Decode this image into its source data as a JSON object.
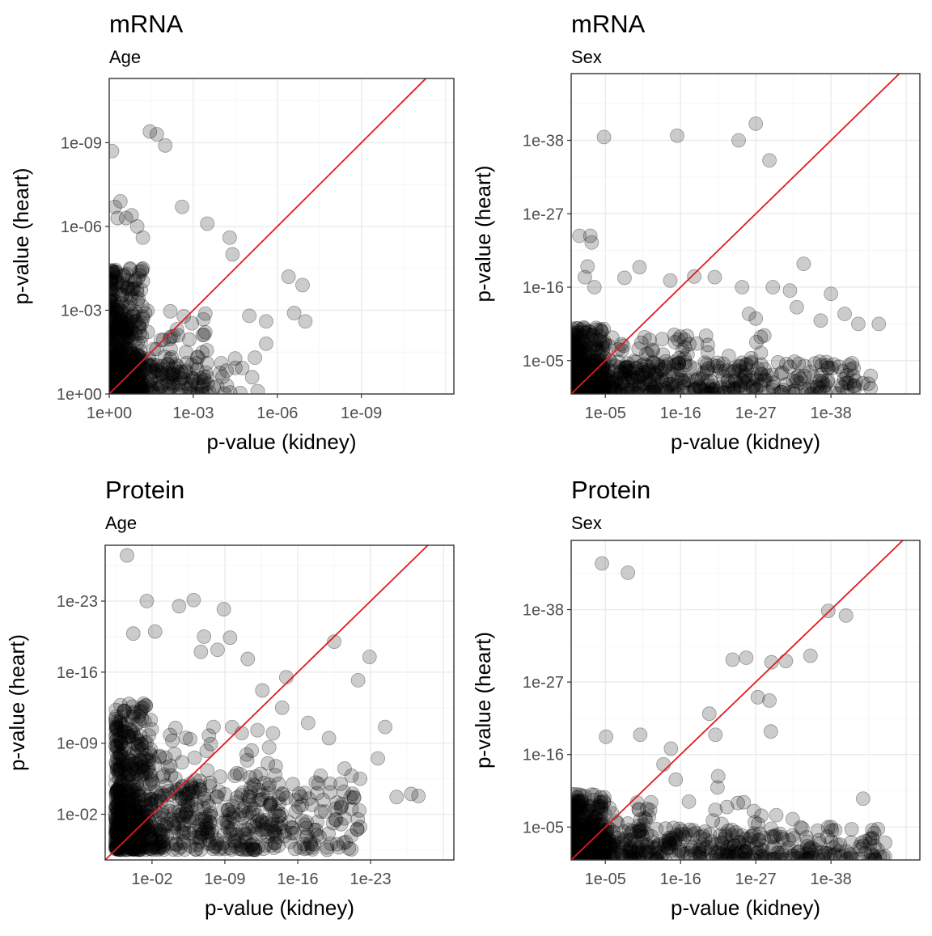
{
  "chart_data": [
    {
      "type": "scatter",
      "title": "mRNA",
      "subtitle": "Age",
      "xlabel": "p-value (kidney)",
      "ylabel": "p-value (heart)",
      "scale": "-log10",
      "xlim": [
        0,
        12.3
      ],
      "ylim": [
        0,
        11.3
      ],
      "ticks": [
        {
          "v": 0,
          "label": "1e+00"
        },
        {
          "v": 3,
          "label": "1e-03"
        },
        {
          "v": 6,
          "label": "1e-06"
        },
        {
          "v": 9,
          "label": "1e-09"
        }
      ],
      "reference_line": "y = x",
      "outliers": [
        [
          1.45,
          9.4
        ],
        [
          1.7,
          9.3
        ],
        [
          2.0,
          8.9
        ],
        [
          0.1,
          8.7
        ],
        [
          0.2,
          6.7
        ],
        [
          0.4,
          6.9
        ],
        [
          0.3,
          6.3
        ],
        [
          0.6,
          6.3
        ],
        [
          0.8,
          6.4
        ],
        [
          1.0,
          6.0
        ],
        [
          1.2,
          5.6
        ],
        [
          2.6,
          6.7
        ],
        [
          3.5,
          6.1
        ],
        [
          4.3,
          5.6
        ],
        [
          4.4,
          5.0
        ],
        [
          6.4,
          4.2
        ],
        [
          6.9,
          3.9
        ],
        [
          6.6,
          2.9
        ],
        [
          7.0,
          2.6
        ],
        [
          5.0,
          2.8
        ],
        [
          5.6,
          2.6
        ],
        [
          5.6,
          1.8
        ],
        [
          5.2,
          1.3
        ],
        [
          5.1,
          0.6
        ],
        [
          5.3,
          0.1
        ],
        [
          4.2,
          0.3
        ],
        [
          4.0,
          1.1
        ]
      ],
      "dense_region": [
        {
          "x": [
            0,
            1.2
          ],
          "y": [
            0,
            4.5
          ],
          "n": 360
        },
        {
          "x": [
            0,
            3.5
          ],
          "y": [
            0,
            3.0
          ],
          "n": 220
        },
        {
          "x": [
            0,
            4.8
          ],
          "y": [
            0,
            1.5
          ],
          "n": 100
        }
      ]
    },
    {
      "type": "scatter",
      "title": "mRNA",
      "subtitle": "Sex",
      "xlabel": "p-value (kidney)",
      "ylabel": "p-value (heart)",
      "scale": "-log10",
      "xlim": [
        0,
        51
      ],
      "ylim": [
        0,
        48
      ],
      "ticks": [
        {
          "v": 5,
          "label": "1e-05"
        },
        {
          "v": 16,
          "label": "1e-16"
        },
        {
          "v": 27,
          "label": "1e-27"
        },
        {
          "v": 38,
          "label": "1e-38"
        }
      ],
      "reference_line": "y = x",
      "outliers": [
        [
          4.8,
          38.5
        ],
        [
          15.5,
          38.7
        ],
        [
          24.5,
          38.0
        ],
        [
          27.0,
          40.5
        ],
        [
          29.0,
          35.0
        ],
        [
          1.2,
          23.7
        ],
        [
          2.8,
          23.7
        ],
        [
          3.0,
          22.7
        ],
        [
          2.4,
          19.1
        ],
        [
          2.0,
          17.5
        ],
        [
          3.4,
          16.0
        ],
        [
          7.8,
          17.4
        ],
        [
          10.0,
          19.0
        ],
        [
          14.5,
          17.0
        ],
        [
          18.0,
          17.6
        ],
        [
          21.0,
          17.5
        ],
        [
          25.0,
          16.0
        ],
        [
          29.5,
          16.0
        ],
        [
          32.0,
          15.5
        ],
        [
          34.0,
          19.5
        ],
        [
          38.0,
          15.0
        ],
        [
          40.0,
          12.0
        ],
        [
          42.0,
          10.5
        ],
        [
          45.0,
          10.5
        ],
        [
          36.5,
          11.0
        ],
        [
          33.0,
          13.0
        ],
        [
          26.0,
          12.0
        ],
        [
          27.0,
          11.3
        ]
      ],
      "dense_region": [
        {
          "x": [
            0,
            5
          ],
          "y": [
            0,
            10
          ],
          "n": 260
        },
        {
          "x": [
            0,
            44
          ],
          "y": [
            0,
            5
          ],
          "n": 420
        },
        {
          "x": [
            0,
            30
          ],
          "y": [
            2,
            9
          ],
          "n": 120
        }
      ]
    },
    {
      "type": "scatter",
      "title": "Protein",
      "subtitle": "Age",
      "xlabel": "p-value (kidney)",
      "ylabel": "p-value (heart)",
      "scale": "-log10",
      "xlim": [
        -2.5,
        31
      ],
      "ylim": [
        -2.5,
        28.5
      ],
      "ticks": [
        {
          "v": 2,
          "label": "1e-02"
        },
        {
          "v": 9,
          "label": "1e-09"
        },
        {
          "v": 16,
          "label": "1e-16"
        },
        {
          "v": 23,
          "label": "1e-23"
        }
      ],
      "reference_line": "y = x",
      "outliers": [
        [
          -0.4,
          27.5
        ],
        [
          1.5,
          23.0
        ],
        [
          4.6,
          22.5
        ],
        [
          6.0,
          23.1
        ],
        [
          8.9,
          22.2
        ],
        [
          0.2,
          19.8
        ],
        [
          2.3,
          20.0
        ],
        [
          7.0,
          19.5
        ],
        [
          9.5,
          19.4
        ],
        [
          6.7,
          18.0
        ],
        [
          8.3,
          18.2
        ],
        [
          11.2,
          17.3
        ],
        [
          19.5,
          19.0
        ],
        [
          22.9,
          17.5
        ],
        [
          21.8,
          15.2
        ],
        [
          14.9,
          15.5
        ],
        [
          12.6,
          14.2
        ],
        [
          24.4,
          10.6
        ],
        [
          23.7,
          7.5
        ],
        [
          25.5,
          3.7
        ],
        [
          26.9,
          4.0
        ],
        [
          27.6,
          3.8
        ],
        [
          22.0,
          5.5
        ],
        [
          20.5,
          6.5
        ],
        [
          19.0,
          9.5
        ],
        [
          17.0,
          11.0
        ],
        [
          14.5,
          12.5
        ]
      ],
      "dense_region": [
        {
          "x": [
            -1.5,
            2
          ],
          "y": [
            -1.5,
            13
          ],
          "n": 300
        },
        {
          "x": [
            -1.5,
            22
          ],
          "y": [
            -1.5,
            6
          ],
          "n": 420
        },
        {
          "x": [
            -1.5,
            15
          ],
          "y": [
            0,
            11
          ],
          "n": 200
        }
      ]
    },
    {
      "type": "scatter",
      "title": "Protein",
      "subtitle": "Sex",
      "xlabel": "p-value (kidney)",
      "ylabel": "p-value (heart)",
      "scale": "-log10",
      "xlim": [
        0,
        51
      ],
      "ylim": [
        0,
        48.5
      ],
      "ticks": [
        {
          "v": 5,
          "label": "1e-05"
        },
        {
          "v": 16,
          "label": "1e-16"
        },
        {
          "v": 27,
          "label": "1e-27"
        },
        {
          "v": 38,
          "label": "1e-38"
        }
      ],
      "reference_line": "y = x",
      "outliers": [
        [
          4.5,
          45.0
        ],
        [
          8.3,
          43.6
        ],
        [
          37.6,
          37.8
        ],
        [
          40.2,
          37.1
        ],
        [
          23.6,
          30.4
        ],
        [
          25.6,
          30.7
        ],
        [
          29.3,
          30.0
        ],
        [
          31.4,
          30.2
        ],
        [
          35.0,
          31.0
        ],
        [
          27.3,
          24.7
        ],
        [
          29.0,
          24.2
        ],
        [
          29.2,
          19.5
        ],
        [
          20.2,
          22.2
        ],
        [
          21.1,
          19.0
        ],
        [
          5.1,
          18.7
        ],
        [
          10.1,
          19.0
        ],
        [
          14.6,
          16.9
        ],
        [
          13.5,
          14.5
        ],
        [
          15.3,
          12.2
        ],
        [
          21.5,
          12.7
        ],
        [
          21.4,
          11.0
        ],
        [
          42.7,
          9.3
        ],
        [
          32.4,
          6.2
        ],
        [
          30.0,
          6.8
        ],
        [
          38.0,
          5.0
        ]
      ],
      "dense_region": [
        {
          "x": [
            0,
            5
          ],
          "y": [
            0,
            10
          ],
          "n": 260
        },
        {
          "x": [
            0,
            46
          ],
          "y": [
            0,
            5
          ],
          "n": 420
        },
        {
          "x": [
            0,
            28
          ],
          "y": [
            1,
            9
          ],
          "n": 120
        }
      ]
    }
  ]
}
